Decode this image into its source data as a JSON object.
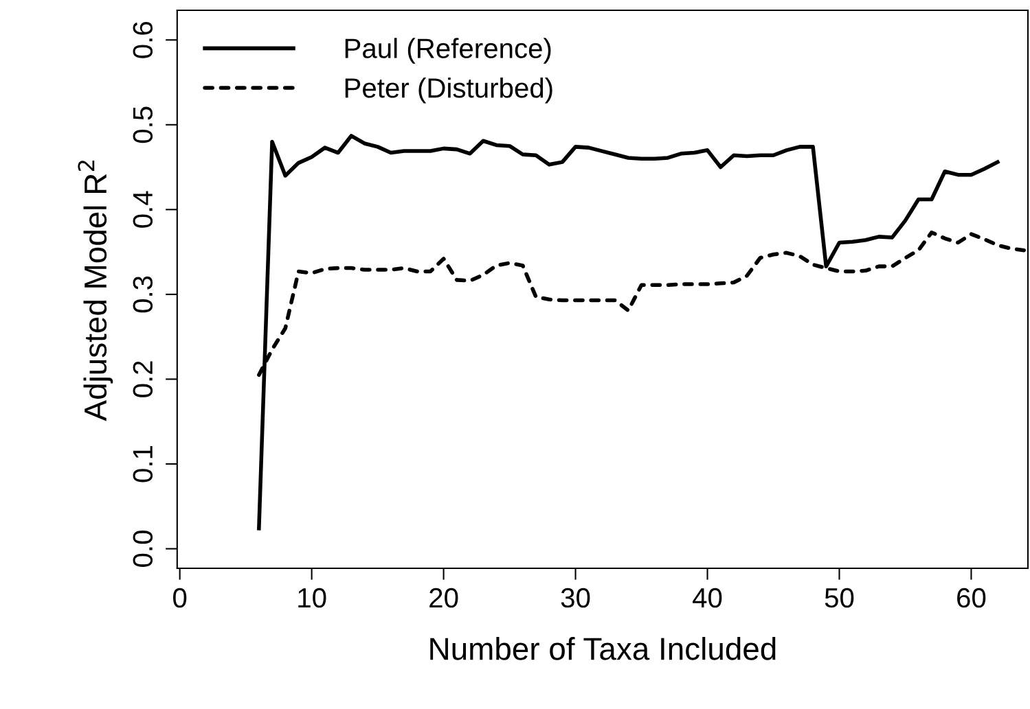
{
  "chart_data": {
    "type": "line",
    "xlabel": "Number of Taxa Included",
    "ylabel": "Adjusted Model R$^{2}$",
    "xlim": [
      -0.2,
      64.3
    ],
    "ylim": [
      -0.023,
      0.635
    ],
    "xticks": [
      0,
      10,
      20,
      30,
      40,
      50,
      60
    ],
    "yticks": [
      {
        "value": 0,
        "label": "0.0"
      },
      0.1,
      0.2,
      0.3,
      0.4,
      0.5,
      0.6
    ],
    "grid": false,
    "legend": "top left",
    "series": [
      {
        "name": "Paul (Reference)",
        "color": "#000000",
        "line_style": "solid",
        "x": [
          6,
          7,
          8,
          9,
          10,
          11,
          12,
          13,
          14,
          15,
          16,
          17,
          18,
          19,
          20,
          21,
          22,
          23,
          24,
          25,
          26,
          27,
          28,
          29,
          30,
          31,
          32,
          33,
          34,
          35,
          36,
          37,
          38,
          39,
          40,
          41,
          42,
          43,
          44,
          45,
          46,
          47,
          48,
          49,
          50,
          51,
          52,
          53,
          54,
          55,
          56,
          57,
          58,
          59,
          60,
          61,
          62
        ],
        "values": [
          0.024,
          0.48,
          0.44,
          0.455,
          0.462,
          0.473,
          0.467,
          0.487,
          0.478,
          0.474,
          0.467,
          0.469,
          0.469,
          0.469,
          0.472,
          0.471,
          0.466,
          0.481,
          0.476,
          0.475,
          0.465,
          0.464,
          0.453,
          0.456,
          0.474,
          0.473,
          0.469,
          0.465,
          0.461,
          0.46,
          0.46,
          0.461,
          0.466,
          0.467,
          0.47,
          0.45,
          0.464,
          0.463,
          0.464,
          0.464,
          0.47,
          0.474,
          0.474,
          0.333,
          0.361,
          0.362,
          0.364,
          0.368,
          0.367,
          0.387,
          0.412,
          0.412,
          0.445,
          0.441,
          0.441,
          0.448,
          0.456
        ]
      },
      {
        "name": "Peter (Disturbed)",
        "color": "#000000",
        "line_style": "dotted",
        "x": [
          6,
          7,
          8,
          9,
          10,
          11,
          12,
          13,
          14,
          15,
          16,
          17,
          18,
          19,
          20,
          21,
          22,
          23,
          24,
          25,
          26,
          27,
          28,
          29,
          30,
          31,
          32,
          33,
          34,
          35,
          36,
          37,
          38,
          39,
          40,
          41,
          42,
          43,
          44,
          45,
          46,
          47,
          48,
          49,
          50,
          51,
          52,
          53,
          54,
          55,
          56,
          57,
          58,
          59,
          60,
          61,
          62,
          63,
          64
        ],
        "values": [
          0.205,
          0.235,
          0.26,
          0.327,
          0.325,
          0.33,
          0.331,
          0.331,
          0.329,
          0.329,
          0.329,
          0.331,
          0.327,
          0.327,
          0.342,
          0.317,
          0.316,
          0.323,
          0.334,
          0.337,
          0.334,
          0.297,
          0.294,
          0.293,
          0.293,
          0.293,
          0.293,
          0.293,
          0.281,
          0.311,
          0.311,
          0.311,
          0.312,
          0.312,
          0.312,
          0.313,
          0.314,
          0.322,
          0.343,
          0.347,
          0.349,
          0.345,
          0.335,
          0.331,
          0.327,
          0.327,
          0.328,
          0.333,
          0.333,
          0.343,
          0.352,
          0.373,
          0.366,
          0.361,
          0.371,
          0.365,
          0.358,
          0.354,
          0.352
        ]
      }
    ]
  }
}
